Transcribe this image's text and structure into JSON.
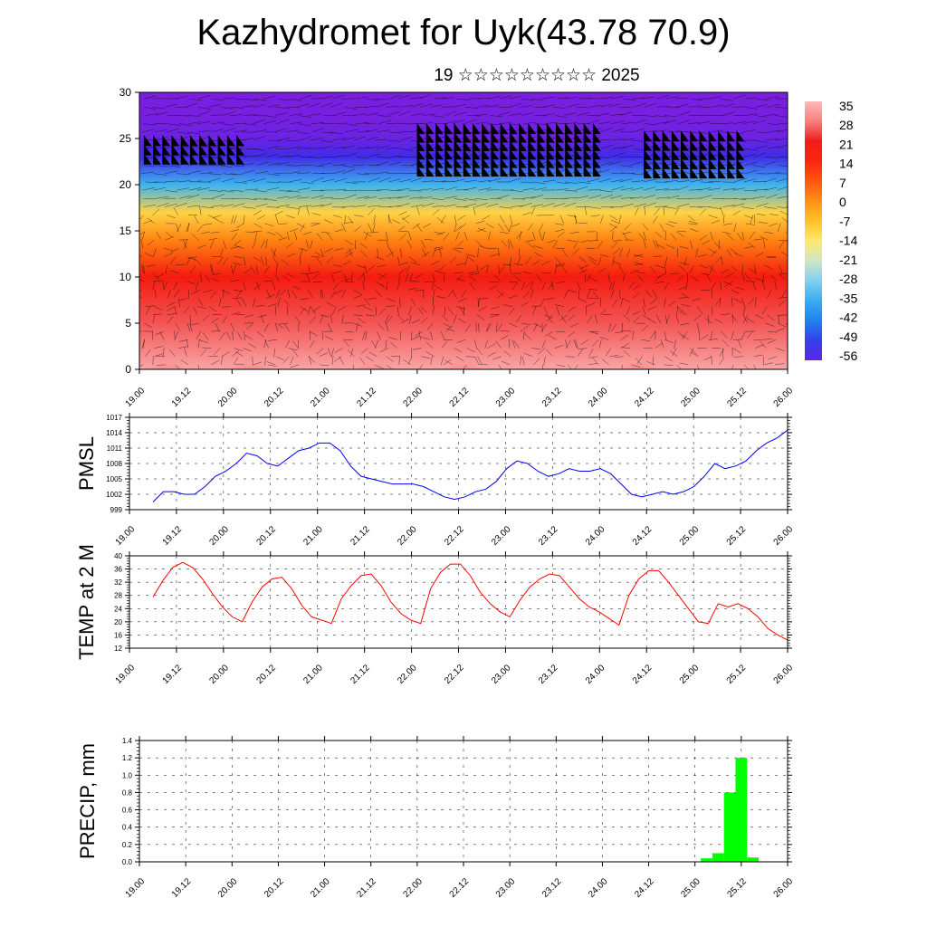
{
  "title": "Kazhydromet for Uyk(43.78 70.9)",
  "subtitle": "19 ☆☆☆☆☆☆☆☆☆ 2025",
  "x_tick_labels": [
    "19.00",
    "19.12",
    "20.00",
    "20.12",
    "21.00",
    "21.12",
    "22.00",
    "22.12",
    "23.00",
    "23.12",
    "24.00",
    "24.12",
    "25.00",
    "25.12",
    "26.00"
  ],
  "colors": {
    "pmsl_line": "#0000ff",
    "temp_line": "#ff0000",
    "precip_bar": "#00ff00",
    "colorbar": [
      "#7a1fe0",
      "#3a2ee8",
      "#2080f0",
      "#40b8f0",
      "#b0e0f0",
      "#fff080",
      "#ffc020",
      "#ff8010",
      "#ff3010",
      "#ee1010",
      "#f89090",
      "#ffd0d0"
    ]
  },
  "chart_data": [
    {
      "type": "heatmap",
      "name": "cross-section",
      "ylim": [
        0,
        30
      ],
      "y_ticks": [
        "0",
        "5",
        "10",
        "15",
        "20",
        "25",
        "30"
      ],
      "colorbar_labels": [
        "35",
        "28",
        "21",
        "14",
        "7",
        "0",
        "-7",
        "-14",
        "-21",
        "-28",
        "-35",
        "-42",
        "-49",
        "-56"
      ],
      "colorbar_range": [
        -60,
        38
      ],
      "x_range": [
        0,
        7
      ],
      "temperature_profile": [
        {
          "height": 0,
          "temp": 32
        },
        {
          "height": 5,
          "temp": 25
        },
        {
          "height": 10,
          "temp": 17
        },
        {
          "height": 14,
          "temp": 2
        },
        {
          "height": 17,
          "temp": -10
        },
        {
          "height": 20,
          "temp": -34
        },
        {
          "height": 23,
          "temp": -52
        },
        {
          "height": 25,
          "temp": -58
        },
        {
          "height": 28,
          "temp": -62
        },
        {
          "height": 30,
          "temp": -62
        }
      ],
      "warm_spots_x": [
        0.3,
        1.2,
        2.55,
        3.5,
        5.4
      ],
      "vector_groups": [
        {
          "x_range": [
            0.05,
            1.05
          ],
          "y_range": [
            22.5,
            24.5
          ]
        },
        {
          "x_range": [
            3.0,
            4.9
          ],
          "y_range": [
            21.2,
            25.8
          ]
        },
        {
          "x_range": [
            5.45,
            6.4
          ],
          "y_range": [
            21.0,
            25.0
          ]
        }
      ]
    },
    {
      "type": "line",
      "ylabel": "PMSL",
      "ylim": [
        999,
        1017
      ],
      "y_ticks": [
        "999",
        "1002",
        "1005",
        "1008",
        "1011",
        "1014",
        "1017"
      ],
      "series": [
        {
          "values": [
            1000.5,
            1002.5,
            1002.5,
            1002,
            1002,
            1003.5,
            1005.5,
            1006.5,
            1008,
            1010,
            1009.5,
            1008,
            1007.5,
            1009,
            1010.5,
            1011,
            1012,
            1012,
            1010.5,
            1007.5,
            1005.5,
            1005,
            1004.5,
            1004,
            1004,
            1004,
            1003.5,
            1002.5,
            1001.5,
            1001,
            1001.5,
            1002.5,
            1003,
            1004.5,
            1007,
            1008.5,
            1008,
            1006.5,
            1005.5,
            1006,
            1007,
            1006.5,
            1006.5,
            1007,
            1006,
            1004,
            1002,
            1001.5,
            1002,
            1002.5,
            1002,
            1002.5,
            1003.5,
            1005.5,
            1008,
            1007,
            1007.5,
            1008.5,
            1010.5,
            1012,
            1013,
            1014.5
          ]
        }
      ]
    },
    {
      "type": "line",
      "ylabel": "TEMP at 2 M",
      "ylim": [
        12,
        40
      ],
      "y_ticks": [
        "12",
        "16",
        "20",
        "24",
        "28",
        "32",
        "36",
        "40"
      ],
      "series": [
        {
          "values": [
            27.5,
            32.5,
            36.5,
            38,
            36.5,
            33,
            28.5,
            24.5,
            21.5,
            20,
            26,
            30.5,
            33,
            33.5,
            30,
            25,
            21.5,
            20.5,
            19.5,
            27,
            31,
            34,
            34.5,
            31,
            26,
            22.5,
            20.5,
            19.5,
            30,
            35,
            37.5,
            37.5,
            34,
            29,
            25.5,
            23,
            21.5,
            26.5,
            30.5,
            33,
            34.5,
            34,
            30.5,
            27,
            24.5,
            23,
            21,
            19,
            28,
            33,
            35.5,
            35.5,
            32,
            28,
            24,
            20,
            19.5,
            25.5,
            24.5,
            25.5,
            24,
            21.5,
            18,
            16,
            14.5
          ]
        }
      ]
    },
    {
      "type": "bar",
      "ylabel": "PRECIP, mm",
      "ylim": [
        0,
        1.4
      ],
      "y_ticks": [
        "0.0",
        "0.2",
        "0.4",
        "0.6",
        "0.8",
        "1.0",
        "1.2",
        "1.4"
      ],
      "bars": [
        {
          "x": 6.125,
          "value": 0.04
        },
        {
          "x": 6.25,
          "value": 0.1
        },
        {
          "x": 6.375,
          "value": 0.8
        },
        {
          "x": 6.5,
          "value": 1.2
        },
        {
          "x": 6.625,
          "value": 0.05
        }
      ]
    }
  ]
}
